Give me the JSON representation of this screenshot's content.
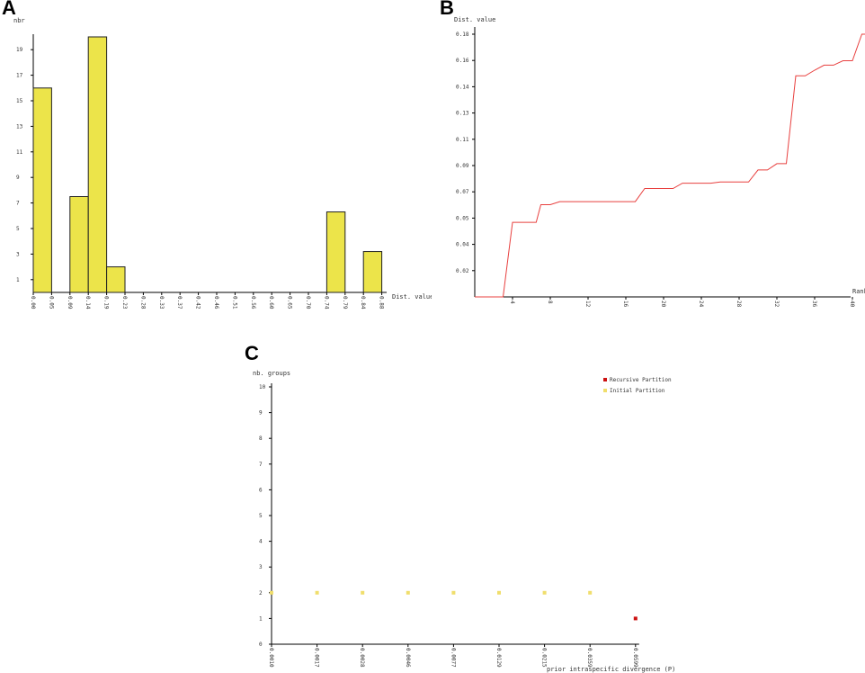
{
  "panels": {
    "a": "A",
    "b": "B",
    "c": "C"
  },
  "colors": {
    "bar_fill": "#ece44a",
    "bar_stroke": "#222222",
    "line": "#e8403f",
    "recursive": "#cc1111",
    "initial": "#f0de6c",
    "axis": "#000000"
  },
  "chart_data": [
    {
      "type": "bar",
      "panel": "A",
      "ylabel": "nbr",
      "xlabel": "Dist. value",
      "x_ticks": [
        "0.00",
        "0.05",
        "0.09",
        "0.14",
        "0.19",
        "0.23",
        "0.28",
        "0.33",
        "0.37",
        "0.42",
        "0.46",
        "0.51",
        "0.56",
        "0.60",
        "0.65",
        "0.70",
        "0.74",
        "0.79",
        "0.84",
        "0.88"
      ],
      "y_ticks": [
        "1",
        "3",
        "5",
        "7",
        "9",
        "11",
        "13",
        "15",
        "17",
        "19"
      ],
      "ylim": [
        0,
        20
      ],
      "bins": [
        {
          "start": "0.00",
          "end": "0.05",
          "value": 16
        },
        {
          "start": "0.09",
          "end": "0.14",
          "value": 7.5
        },
        {
          "start": "0.14",
          "end": "0.19",
          "value": 20
        },
        {
          "start": "0.19",
          "end": "0.23",
          "value": 2
        },
        {
          "start": "0.74",
          "end": "0.79",
          "value": 6.3
        },
        {
          "start": "0.84",
          "end": "0.88",
          "value": 3.2
        }
      ]
    },
    {
      "type": "line",
      "panel": "B",
      "ylabel": "Dist. value",
      "xlabel": "Rank",
      "x_ticks": [
        "4",
        "8",
        "12",
        "16",
        "20",
        "24",
        "28",
        "32",
        "36",
        "40"
      ],
      "y_ticks": [
        "0.02",
        "0.04",
        "0.05",
        "0.07",
        "0.09",
        "0.11",
        "0.13",
        "0.14",
        "0.16",
        "0.18"
      ],
      "xlim": [
        0,
        40
      ],
      "ylim": [
        0,
        0.198
      ],
      "series": [
        {
          "values": [
            [
              0,
              0
            ],
            [
              3,
              0
            ],
            [
              4,
              0.0562
            ],
            [
              6.5,
              0.0562
            ],
            [
              7,
              0.0695
            ],
            [
              8,
              0.0695
            ],
            [
              9,
              0.0718
            ],
            [
              17,
              0.0718
            ],
            [
              18,
              0.0817
            ],
            [
              21,
              0.0817
            ],
            [
              22,
              0.0857
            ],
            [
              25,
              0.0857
            ],
            [
              26,
              0.0866
            ],
            [
              29,
              0.0866
            ],
            [
              30,
              0.0957
            ],
            [
              31,
              0.0957
            ],
            [
              32,
              0.1004
            ],
            [
              33,
              0.1004
            ],
            [
              34,
              0.1666
            ],
            [
              35,
              0.1666
            ],
            [
              36,
              0.1709
            ],
            [
              37,
              0.1747
            ],
            [
              38,
              0.1747
            ],
            [
              39,
              0.178
            ],
            [
              40,
              0.178
            ],
            [
              41,
              0.198
            ],
            [
              42,
              0.198
            ]
          ]
        }
      ]
    },
    {
      "type": "scatter",
      "panel": "C",
      "ylabel": "nb. groups",
      "xlabel": "prior intraspecific divergence (P)",
      "x_ticks": [
        "0.0010",
        "0.0017",
        "0.0028",
        "0.0046",
        "0.0077",
        "0.0129",
        "0.0215",
        "0.0359",
        "0.0599"
      ],
      "y_ticks": [
        "0",
        "1",
        "2",
        "3",
        "4",
        "5",
        "6",
        "7",
        "8",
        "9",
        "10"
      ],
      "ylim": [
        0,
        10
      ],
      "legend": [
        "Recursive Partition",
        "Initial Partition"
      ],
      "legend_position": "top-right",
      "series": [
        {
          "name": "Recursive Partition",
          "points": [
            [
              "0.0599",
              1
            ]
          ]
        },
        {
          "name": "Initial Partition",
          "points": [
            [
              "0.0010",
              2
            ],
            [
              "0.0017",
              2
            ],
            [
              "0.0028",
              2
            ],
            [
              "0.0046",
              2
            ],
            [
              "0.0077",
              2
            ],
            [
              "0.0129",
              2
            ],
            [
              "0.0215",
              2
            ],
            [
              "0.0359",
              2
            ]
          ]
        }
      ]
    }
  ]
}
